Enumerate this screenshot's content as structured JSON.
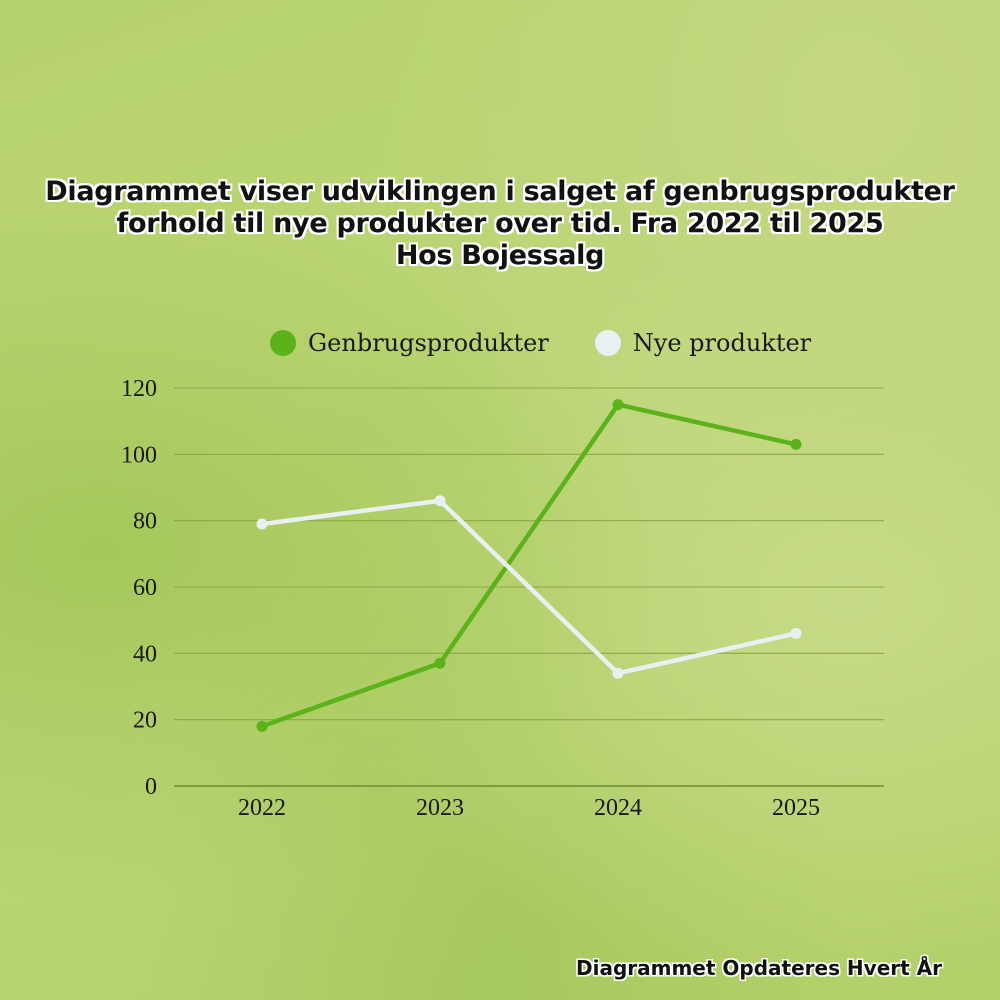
{
  "title": {
    "line1": "Diagrammet viser udviklingen i salget af genbrugsprodukter",
    "line2": "forhold til nye produkter over tid. Fra 2022 til 2025",
    "line3": "Hos Bojessalg"
  },
  "legend": [
    {
      "label": "Genbrugsprodukter",
      "color": "#5cb21a"
    },
    {
      "label": "Nye produkter",
      "color": "#e8f0f2"
    }
  ],
  "footer": "Diagrammet Opdateres Hvert År",
  "chart_data": {
    "type": "line",
    "title": "Diagrammet viser udviklingen i salget af genbrugsprodukter forhold til nye produkter over tid. Fra 2022 til 2025 Hos Bojessalg",
    "categories": [
      "2022",
      "2023",
      "2024",
      "2025"
    ],
    "series": [
      {
        "name": "Genbrugsprodukter",
        "color": "#5cb21a",
        "values": [
          18,
          37,
          115,
          103
        ]
      },
      {
        "name": "Nye produkter",
        "color": "#e8f0f2",
        "values": [
          79,
          86,
          34,
          46
        ]
      }
    ],
    "xlabel": "",
    "ylabel": "",
    "ylim": [
      0,
      120
    ],
    "yticks": [
      0,
      20,
      40,
      60,
      80,
      100,
      120
    ],
    "grid": true,
    "legend_position": "top"
  }
}
